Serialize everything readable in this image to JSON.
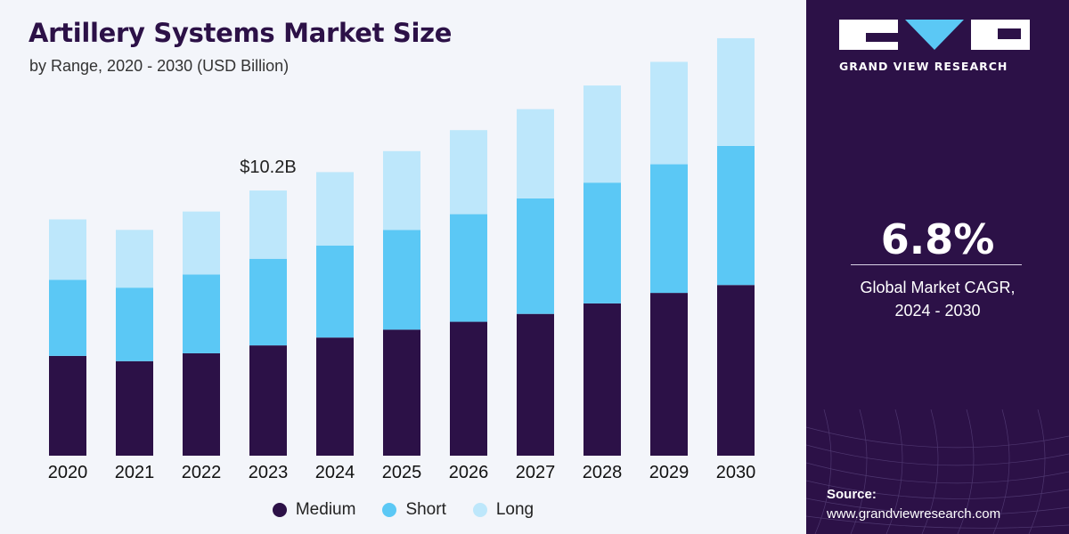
{
  "header": {
    "title": "Artillery Systems Market Size",
    "subtitle": "by Range, 2020 - 2030 (USD Billion)"
  },
  "chart_data": {
    "type": "bar",
    "stacked": true,
    "title": "Artillery Systems Market Size",
    "subtitle": "by Range, 2020 - 2030 (USD Billion)",
    "xlabel": "",
    "ylabel": "",
    "categories": [
      "2020",
      "2021",
      "2022",
      "2023",
      "2024",
      "2025",
      "2026",
      "2027",
      "2028",
      "2029",
      "2030"
    ],
    "series": [
      {
        "name": "Medium",
        "color": "#2c1147",
        "values": [
          3.8,
          3.6,
          3.9,
          4.2,
          4.5,
          4.8,
          5.1,
          5.4,
          5.8,
          6.2,
          6.5
        ]
      },
      {
        "name": "Short",
        "color": "#5bc8f5",
        "values": [
          2.9,
          2.8,
          3.0,
          3.3,
          3.5,
          3.8,
          4.1,
          4.4,
          4.6,
          4.9,
          5.3
        ]
      },
      {
        "name": "Long",
        "color": "#bde7fb",
        "values": [
          2.3,
          2.2,
          2.4,
          2.6,
          2.8,
          3.0,
          3.2,
          3.4,
          3.7,
          3.9,
          4.1
        ]
      }
    ],
    "annotations": [
      {
        "category": "2023",
        "text": "$10.2B"
      }
    ],
    "ylim": [
      0,
      16
    ],
    "grid": false,
    "legend": "bottom"
  },
  "sidebar": {
    "logo_text": "GRAND VIEW RESEARCH",
    "cagr_value": "6.8%",
    "cagr_label_line1": "Global Market CAGR,",
    "cagr_label_line2": "2024 - 2030",
    "source_title": "Source:",
    "source_url": "www.grandviewresearch.com"
  },
  "colors": {
    "brand_purple": "#2c1147",
    "short_blue": "#5bc8f5",
    "long_light_blue": "#bde7fb",
    "chart_background": "#f3f5fa"
  }
}
